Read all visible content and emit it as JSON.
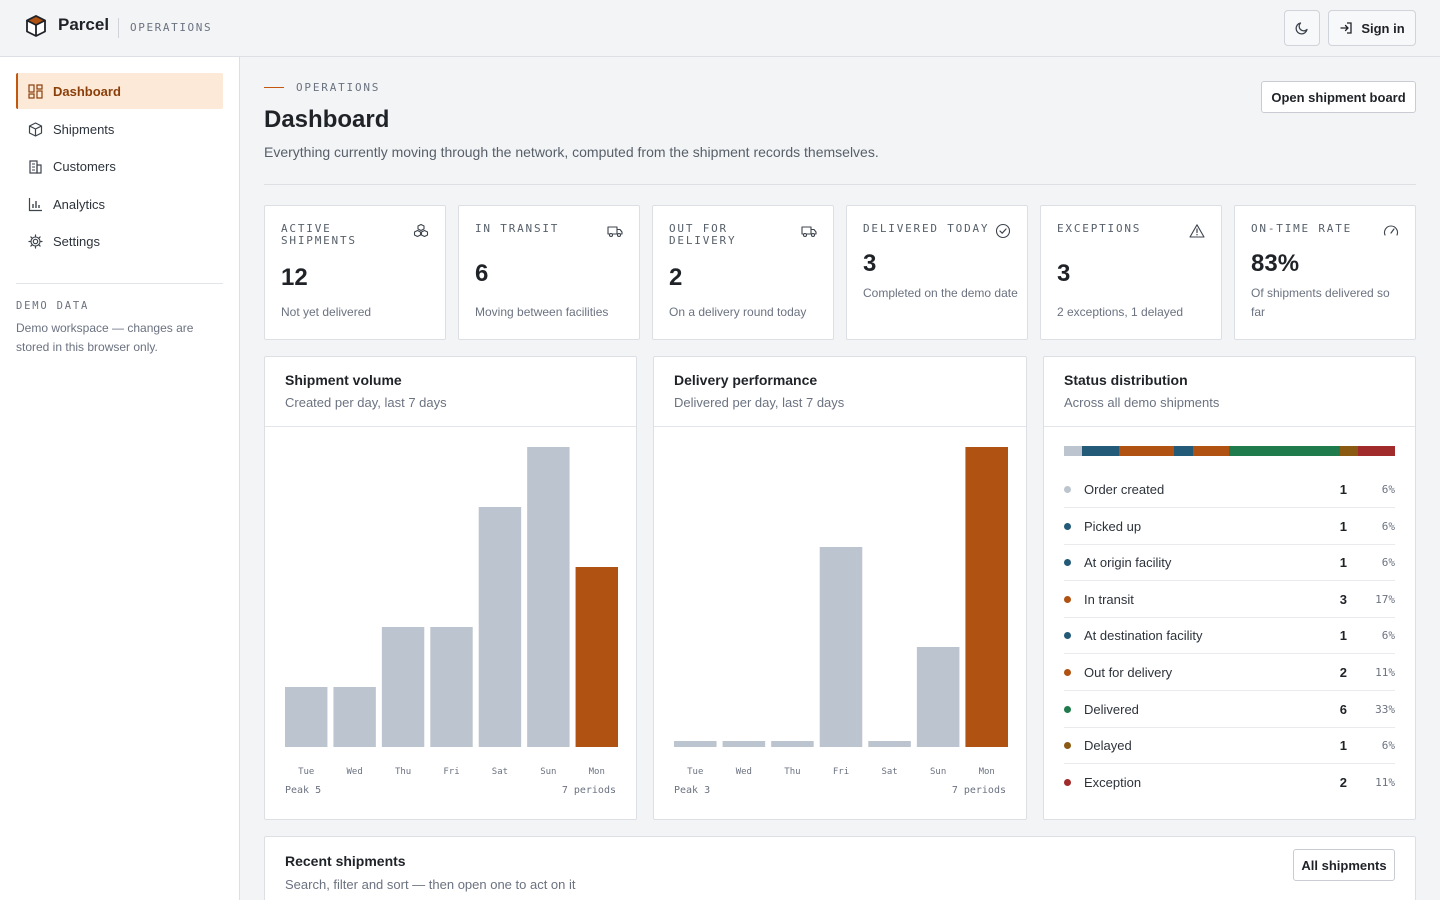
{
  "brand": {
    "name": "Parcel",
    "section": "OPERATIONS"
  },
  "topbar": {
    "signin_label": "Sign in",
    "theme_icon": "moon-icon",
    "signin_icon": "sign-in-icon"
  },
  "sidebar": {
    "items": [
      {
        "label": "Dashboard",
        "icon": "dashboard-icon",
        "active": true
      },
      {
        "label": "Shipments",
        "icon": "package-icon",
        "active": false
      },
      {
        "label": "Customers",
        "icon": "building-icon",
        "active": false
      },
      {
        "label": "Analytics",
        "icon": "bar-chart-icon",
        "active": false
      },
      {
        "label": "Settings",
        "icon": "gear-icon",
        "active": false
      }
    ],
    "demo": {
      "title": "DEMO DATA",
      "text": "Demo workspace — changes are stored in this browser only."
    }
  },
  "header": {
    "eyebrow": "OPERATIONS",
    "title": "Dashboard",
    "subtitle": "Everything currently moving through the network, computed from the shipment records themselves.",
    "open_board_label": "Open shipment board"
  },
  "stats": [
    {
      "label": "ACTIVE SHIPMENTS",
      "value": "12",
      "note": "Not yet delivered",
      "icon": "boxes-icon"
    },
    {
      "label": "IN TRANSIT",
      "value": "6",
      "note": "Moving between facilities",
      "icon": "truck-icon"
    },
    {
      "label": "OUT FOR DELIVERY",
      "value": "2",
      "note": "On a delivery round today",
      "icon": "truck-icon"
    },
    {
      "label": "DELIVERED TODAY",
      "value": "3",
      "note": "Completed on the demo date",
      "icon": "check-circle-icon"
    },
    {
      "label": "EXCEPTIONS",
      "value": "3",
      "note": "2 exceptions, 1 delayed",
      "icon": "warning-icon"
    },
    {
      "label": "ON-TIME RATE",
      "value": "83%",
      "note": "Of shipments delivered so far",
      "icon": "gauge-icon"
    }
  ],
  "colors": {
    "accent": "#b05212",
    "bar_muted": "#bcc5cf",
    "order_created": "#bcc5cf",
    "picked_up": "#235a78",
    "at_origin": "#235a78",
    "in_transit": "#b05212",
    "at_destination": "#235a78",
    "out_for_delivery": "#b05212",
    "delivered": "#1f7a4c",
    "delayed": "#8a5a12",
    "exception": "#a12a2a"
  },
  "chart_data": [
    {
      "type": "bar",
      "title": "Shipment volume",
      "subtitle": "Created per day, last 7 days",
      "categories": [
        "Tue",
        "Wed",
        "Thu",
        "Fri",
        "Sat",
        "Sun",
        "Mon"
      ],
      "values": [
        1,
        1,
        2,
        2,
        4,
        5,
        3
      ],
      "highlight_index": 6,
      "ylim": [
        0,
        5
      ],
      "footer_left": "Peak 5",
      "footer_right": "7 periods"
    },
    {
      "type": "bar",
      "title": "Delivery performance",
      "subtitle": "Delivered per day, last 7 days",
      "categories": [
        "Tue",
        "Wed",
        "Thu",
        "Fri",
        "Sat",
        "Sun",
        "Mon"
      ],
      "values": [
        0,
        0,
        0,
        2,
        0,
        1,
        3
      ],
      "highlight_index": 6,
      "ylim": [
        0,
        3
      ],
      "footer_left": "Peak 3",
      "footer_right": "7 periods"
    }
  ],
  "distribution": {
    "title": "Status distribution",
    "subtitle": "Across all demo shipments",
    "rows": [
      {
        "name": "Order created",
        "count": "1",
        "pct": "6%",
        "color": "#bcc5cf"
      },
      {
        "name": "Picked up",
        "count": "1",
        "pct": "6%",
        "color": "#235a78"
      },
      {
        "name": "At origin facility",
        "count": "1",
        "pct": "6%",
        "color": "#235a78"
      },
      {
        "name": "In transit",
        "count": "3",
        "pct": "17%",
        "color": "#b05212"
      },
      {
        "name": "At destination facility",
        "count": "1",
        "pct": "6%",
        "color": "#235a78"
      },
      {
        "name": "Out for delivery",
        "count": "2",
        "pct": "11%",
        "color": "#b05212"
      },
      {
        "name": "Delivered",
        "count": "6",
        "pct": "33%",
        "color": "#1f7a4c"
      },
      {
        "name": "Delayed",
        "count": "1",
        "pct": "6%",
        "color": "#8a5a12"
      },
      {
        "name": "Exception",
        "count": "2",
        "pct": "11%",
        "color": "#a12a2a"
      }
    ]
  },
  "recent": {
    "title": "Recent shipments",
    "subtitle": "Search, filter and sort — then open one to act on it",
    "all_label": "All shipments"
  }
}
